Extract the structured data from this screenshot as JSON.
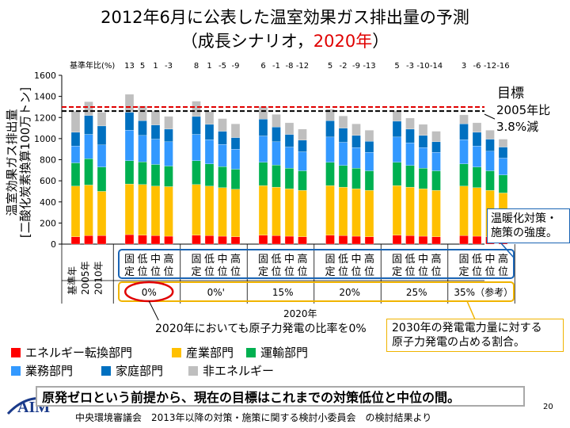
{
  "title": {
    "line1": "2012年6月に公表した温室効果ガス排出量の予測",
    "line2_pre": "（成長シナリオ，",
    "line2_red": "2020年",
    "line2_post": "）"
  },
  "annotations": {
    "goal_label": "目標",
    "goal_sub1": "2005年比",
    "goal_sub2": "3.8%減",
    "strength_line1": "温暖化対策・",
    "strength_line2": "施策の強度。",
    "nuclear_note": "2020年においても原子力発電の比率を0%",
    "year_label": "2020年",
    "share_line1": "2030年の発電電力量に対する",
    "share_line2": "原子力発電の占める割合。",
    "base_ratio_label": "基準年比(%)",
    "level_labels": [
      "固\n定",
      "低\n位",
      "中\n位",
      "高\n位"
    ],
    "base_labels": [
      "基準年",
      "2005年",
      "2010年"
    ]
  },
  "conclusion": "原発ゼロという前提から、現在の目標はこれまでの対策低位と中位の間。",
  "footer": "中央環境審議会　2013年以降の対策・施策に関する検討小委員会　の検討結果より",
  "page_number": "20",
  "logo_text": "AIM",
  "colors": {
    "energy_conversion": "#ff0000",
    "industry": "#ffc000",
    "transport": "#00b050",
    "commercial": "#3399ff",
    "household": "#0070c0",
    "non_energy": "#bfbfbf"
  },
  "chart_data": {
    "type": "bar",
    "stacked": true,
    "ylabel": "温室効果ガス排出量\n[二酸化炭素換算100万トン]",
    "ylim": [
      0,
      1600
    ],
    "yticks": [
      0,
      200,
      400,
      600,
      800,
      1000,
      1200,
      1400,
      1600
    ],
    "target_line": 1300,
    "reference_line": 1261,
    "groups": [
      {
        "label": "",
        "bars": [
          "基準年",
          "2005年",
          "2010年"
        ]
      },
      {
        "label": "0%",
        "bars": [
          "固定",
          "低位",
          "中位",
          "高位"
        ]
      },
      {
        "label": "0%'",
        "bars": [
          "固定",
          "低位",
          "中位",
          "高位"
        ]
      },
      {
        "label": "15%",
        "bars": [
          "固定",
          "低位",
          "中位",
          "高位"
        ]
      },
      {
        "label": "20%",
        "bars": [
          "固定",
          "低位",
          "中位",
          "高位"
        ]
      },
      {
        "label": "25%",
        "bars": [
          "固定",
          "低位",
          "中位",
          "高位"
        ]
      },
      {
        "label": "35%（参考）",
        "bars": [
          "固定",
          "低位",
          "中位",
          "高位"
        ]
      }
    ],
    "base_year_ratio": [
      "",
      "",
      "",
      "13",
      "5",
      "1",
      "-3",
      "8",
      "1",
      "-5",
      "-9",
      "6",
      "-1",
      "-8",
      "-12",
      "5",
      "-2",
      "-9",
      "-13",
      "5",
      "-3",
      "-10",
      "-14",
      "3",
      "-6",
      "-12",
      "-16"
    ],
    "series": [
      {
        "name": "エネルギー転換部門",
        "values": [
          70,
          80,
          80,
          90,
          85,
          80,
          75,
          85,
          80,
          75,
          70,
          85,
          80,
          75,
          70,
          85,
          80,
          75,
          70,
          85,
          80,
          75,
          70,
          80,
          75,
          70,
          65
        ]
      },
      {
        "name": "産業部門",
        "values": [
          480,
          480,
          420,
          480,
          480,
          470,
          470,
          480,
          470,
          460,
          450,
          470,
          460,
          450,
          440,
          470,
          460,
          450,
          440,
          470,
          460,
          450,
          440,
          470,
          460,
          440,
          420
        ]
      },
      {
        "name": "運輸部門",
        "values": [
          220,
          250,
          230,
          220,
          215,
          205,
          195,
          225,
          210,
          200,
          190,
          220,
          210,
          195,
          185,
          220,
          205,
          195,
          185,
          220,
          205,
          195,
          185,
          210,
          195,
          185,
          170
        ]
      },
      {
        "name": "業務部門",
        "values": [
          160,
          230,
          210,
          290,
          250,
          240,
          230,
          250,
          230,
          210,
          190,
          250,
          220,
          200,
          180,
          240,
          220,
          195,
          175,
          240,
          215,
          195,
          175,
          230,
          200,
          185,
          160
        ]
      },
      {
        "name": "家庭部門",
        "values": [
          130,
          180,
          180,
          170,
          140,
          135,
          120,
          170,
          145,
          125,
          110,
          160,
          140,
          120,
          110,
          155,
          135,
          115,
          105,
          150,
          130,
          115,
          100,
          150,
          130,
          115,
          105
        ]
      },
      {
        "name": "非エネルギー",
        "values": [
          200,
          130,
          130,
          170,
          140,
          135,
          120,
          145,
          120,
          120,
          130,
          120,
          120,
          110,
          105,
          110,
          115,
          110,
          105,
          100,
          105,
          105,
          100,
          85,
          90,
          85,
          75
        ]
      }
    ]
  }
}
